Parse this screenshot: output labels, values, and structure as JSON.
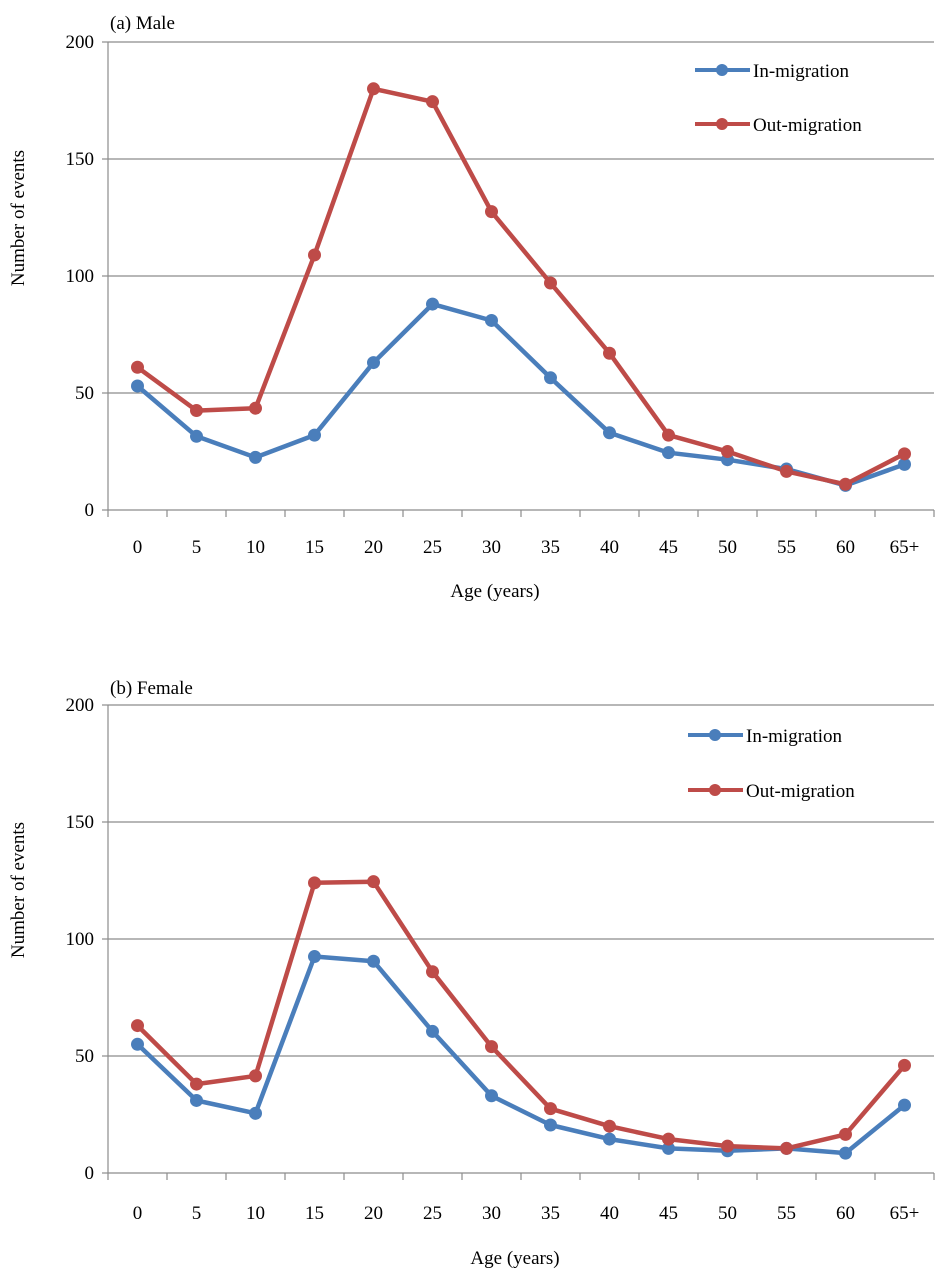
{
  "chart_data": [
    {
      "type": "line",
      "title": "(a) Male",
      "xlabel": "Age (years)",
      "ylabel": "Number of events",
      "categories": [
        "0",
        "5",
        "10",
        "15",
        "20",
        "25",
        "30",
        "35",
        "40",
        "45",
        "50",
        "55",
        "60",
        "65+"
      ],
      "ylim": [
        0,
        200
      ],
      "yticks": [
        0,
        50,
        100,
        150,
        200
      ],
      "grid": true,
      "legend_position": "top-right",
      "series": [
        {
          "name": "In-migration",
          "color": "#4a7ebb",
          "values": [
            53,
            31.5,
            22.5,
            32,
            63,
            88,
            81,
            56.5,
            33,
            24.5,
            21.5,
            17.5,
            10.5,
            19.5
          ]
        },
        {
          "name": "Out-migration",
          "color": "#be4b48",
          "values": [
            61,
            42.5,
            43.5,
            109,
            180,
            174.5,
            127.5,
            97,
            67,
            32,
            25,
            16.5,
            11,
            24
          ]
        }
      ]
    },
    {
      "type": "line",
      "title": "(b) Female",
      "xlabel": "Age (years)",
      "ylabel": "Number of events",
      "categories": [
        "0",
        "5",
        "10",
        "15",
        "20",
        "25",
        "30",
        "35",
        "40",
        "45",
        "50",
        "55",
        "60",
        "65+"
      ],
      "ylim": [
        0,
        200
      ],
      "yticks": [
        0,
        50,
        100,
        150,
        200
      ],
      "grid": true,
      "legend_position": "top-right",
      "series": [
        {
          "name": "In-migration",
          "color": "#4a7ebb",
          "values": [
            55,
            31,
            25.5,
            92.5,
            90.5,
            60.5,
            33,
            20.5,
            14.5,
            10.5,
            9.5,
            10.5,
            8.5,
            29
          ]
        },
        {
          "name": "Out-migration",
          "color": "#be4b48",
          "values": [
            63,
            38,
            41.5,
            124,
            124.5,
            86,
            54,
            27.5,
            20,
            14.5,
            11.5,
            10.5,
            16.5,
            46
          ]
        }
      ]
    }
  ]
}
